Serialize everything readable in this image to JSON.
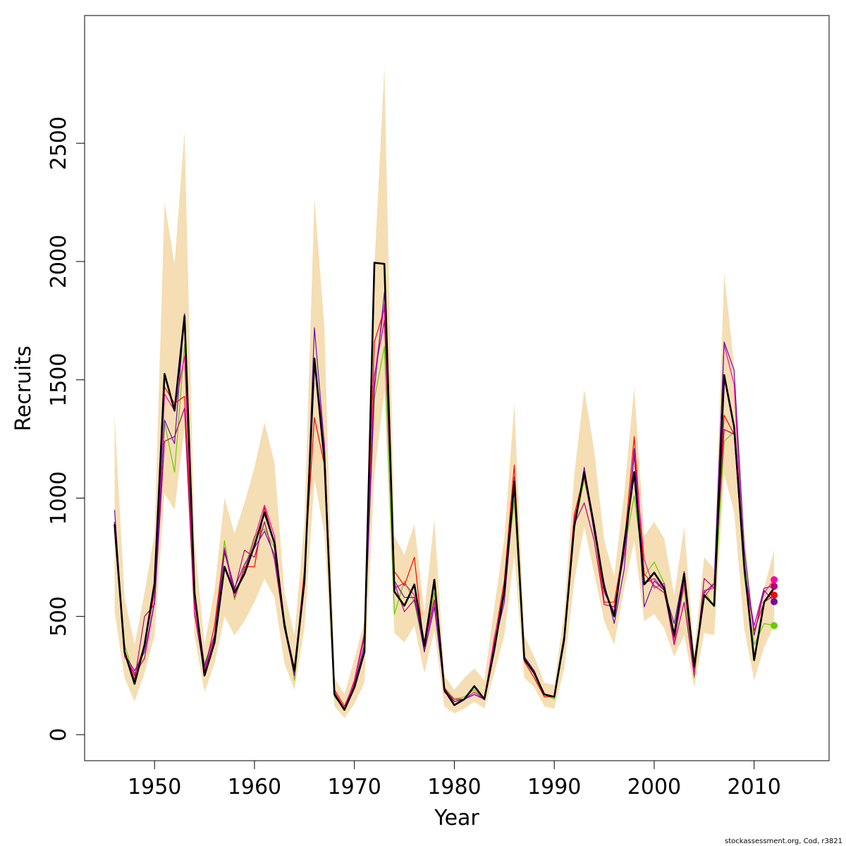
{
  "chart_data": {
    "type": "line",
    "xlabel": "Year",
    "ylabel": "Recruits",
    "xlim": [
      1943,
      2017.5
    ],
    "ylim": [
      -110,
      3040
    ],
    "x_ticks": [
      1950,
      1960,
      1970,
      1980,
      1990,
      2000,
      2010
    ],
    "y_ticks": [
      0,
      500,
      1000,
      1500,
      2000,
      2500
    ],
    "grid": false,
    "legend": "none",
    "credit": "stockassessment.org, Cod, r3821",
    "band_color": "#f5deb3",
    "years": [
      1946,
      1947,
      1948,
      1949,
      1950,
      1951,
      1952,
      1953,
      1954,
      1955,
      1956,
      1957,
      1958,
      1959,
      1960,
      1961,
      1962,
      1963,
      1964,
      1965,
      1966,
      1967,
      1968,
      1969,
      1970,
      1971,
      1972,
      1973,
      1974,
      1975,
      1976,
      1977,
      1978,
      1979,
      1980,
      1981,
      1982,
      1983,
      1984,
      1985,
      1986,
      1987,
      1988,
      1989,
      1990,
      1991,
      1992,
      1993,
      1994,
      1995,
      1996,
      1997,
      1998,
      1999,
      2000,
      2001,
      2002,
      2003,
      2004,
      2005,
      2006,
      2007,
      2008,
      2009,
      2010,
      2011,
      2012
    ],
    "band_lower": [
      520,
      240,
      140,
      260,
      420,
      1020,
      950,
      1300,
      420,
      180,
      300,
      500,
      420,
      480,
      560,
      660,
      580,
      300,
      190,
      450,
      1080,
      850,
      120,
      70,
      130,
      220,
      1100,
      1450,
      430,
      390,
      460,
      260,
      440,
      120,
      90,
      110,
      140,
      110,
      260,
      420,
      760,
      240,
      200,
      120,
      110,
      280,
      650,
      880,
      680,
      480,
      380,
      620,
      820,
      480,
      510,
      450,
      330,
      420,
      200,
      430,
      420,
      1100,
      940,
      450,
      230,
      370,
      460
    ],
    "band_upper": [
      1350,
      580,
      380,
      600,
      850,
      2250,
      1990,
      2550,
      820,
      380,
      610,
      1000,
      850,
      980,
      1130,
      1320,
      1150,
      600,
      420,
      900,
      2270,
      1720,
      240,
      170,
      320,
      480,
      1980,
      2820,
      840,
      760,
      890,
      520,
      910,
      250,
      190,
      240,
      280,
      230,
      540,
      830,
      1400,
      420,
      330,
      220,
      210,
      520,
      1100,
      1460,
      1200,
      820,
      670,
      1020,
      1470,
      840,
      900,
      830,
      590,
      880,
      350,
      750,
      700,
      1950,
      1560,
      880,
      440,
      620,
      780
    ],
    "markers": [
      {
        "x": 2012,
        "y": 655,
        "color": "#ff00aa"
      },
      {
        "x": 2012,
        "y": 627,
        "color": "#b0006e"
      },
      {
        "x": 2012,
        "y": 590,
        "color": "#ff0000"
      },
      {
        "x": 2012,
        "y": 562,
        "color": "#6a0dad"
      },
      {
        "x": 2012,
        "y": 461,
        "color": "#66cc00"
      }
    ],
    "series": [
      {
        "color": "#66cc00",
        "width": 1.2,
        "values": [
          880,
          380,
          240,
          330,
          560,
          1320,
          1110,
          1650,
          560,
          300,
          420,
          820,
          570,
          700,
          840,
          870,
          790,
          490,
          230,
          640,
          1570,
          1160,
          160,
          110,
          230,
          430,
          1420,
          1640,
          510,
          650,
          560,
          360,
          600,
          200,
          150,
          160,
          190,
          150,
          380,
          620,
          990,
          310,
          240,
          170,
          150,
          390,
          870,
          1080,
          870,
          610,
          510,
          780,
          1010,
          670,
          730,
          640,
          430,
          620,
          240,
          610,
          540,
          1240,
          1280,
          670,
          380,
          470,
          461
        ]
      },
      {
        "color": "#ff0000",
        "width": 1.2,
        "values": [
          860,
          340,
          250,
          380,
          600,
          1470,
          1400,
          1430,
          560,
          270,
          460,
          790,
          580,
          710,
          710,
          960,
          810,
          460,
          260,
          700,
          1340,
          1140,
          190,
          120,
          220,
          420,
          1660,
          1800,
          690,
          630,
          750,
          350,
          640,
          190,
          150,
          150,
          180,
          150,
          400,
          650,
          1140,
          310,
          240,
          160,
          160,
          420,
          930,
          1100,
          870,
          560,
          560,
          800,
          1260,
          680,
          630,
          600,
          410,
          660,
          270,
          580,
          640,
          1350,
          1270,
          700,
          440,
          560,
          590
        ]
      },
      {
        "color": "#b0006e",
        "width": 1.2,
        "values": [
          900,
          350,
          230,
          500,
          550,
          1240,
          1260,
          1380,
          510,
          260,
          410,
          770,
          610,
          780,
          750,
          900,
          740,
          450,
          250,
          660,
          1590,
          1190,
          180,
          110,
          230,
          410,
          1520,
          1750,
          640,
          520,
          570,
          380,
          570,
          180,
          140,
          150,
          170,
          150,
          380,
          590,
          1090,
          320,
          260,
          170,
          160,
          400,
          890,
          980,
          820,
          550,
          540,
          760,
          1180,
          640,
          660,
          610,
          380,
          560,
          250,
          660,
          620,
          1290,
          1270,
          700,
          460,
          620,
          627
        ]
      },
      {
        "color": "#ff00aa",
        "width": 1.2,
        "values": [
          880,
          330,
          260,
          320,
          560,
          1440,
          1370,
          1600,
          520,
          280,
          400,
          790,
          580,
          690,
          830,
          970,
          840,
          470,
          250,
          660,
          1590,
          1230,
          170,
          110,
          230,
          430,
          1510,
          1820,
          620,
          640,
          590,
          370,
          560,
          200,
          140,
          150,
          180,
          150,
          410,
          610,
          1080,
          330,
          260,
          170,
          160,
          400,
          910,
          1090,
          860,
          600,
          520,
          780,
          1190,
          740,
          620,
          640,
          390,
          640,
          260,
          610,
          620,
          1650,
          1480,
          700,
          460,
          600,
          655
        ]
      },
      {
        "color": "#6a0dad",
        "width": 1.2,
        "values": [
          950,
          340,
          270,
          350,
          560,
          1330,
          1230,
          1780,
          590,
          290,
          420,
          780,
          620,
          720,
          790,
          860,
          760,
          480,
          250,
          630,
          1720,
          1220,
          170,
          110,
          210,
          380,
          1460,
          1870,
          650,
          580,
          580,
          350,
          540,
          190,
          140,
          150,
          170,
          150,
          380,
          560,
          1040,
          330,
          270,
          170,
          160,
          390,
          870,
          1130,
          850,
          640,
          470,
          700,
          1210,
          540,
          650,
          610,
          470,
          690,
          280,
          600,
          640,
          1660,
          1540,
          790,
          420,
          610,
          562
        ]
      },
      {
        "color": "#000000",
        "width": 2.6,
        "values": [
          890,
          350,
          215,
          380,
          640,
          1525,
          1370,
          1770,
          600,
          250,
          390,
          710,
          600,
          680,
          800,
          940,
          810,
          460,
          270,
          650,
          1590,
          1160,
          170,
          105,
          200,
          350,
          1995,
          1990,
          605,
          545,
          635,
          375,
          655,
          190,
          125,
          150,
          205,
          150,
          360,
          610,
          1070,
          320,
          260,
          170,
          160,
          410,
          880,
          1110,
          880,
          620,
          500,
          810,
          1110,
          635,
          685,
          620,
          420,
          680,
          290,
          590,
          545,
          1520,
          1300,
          720,
          315,
          560,
          620
        ]
      }
    ]
  }
}
